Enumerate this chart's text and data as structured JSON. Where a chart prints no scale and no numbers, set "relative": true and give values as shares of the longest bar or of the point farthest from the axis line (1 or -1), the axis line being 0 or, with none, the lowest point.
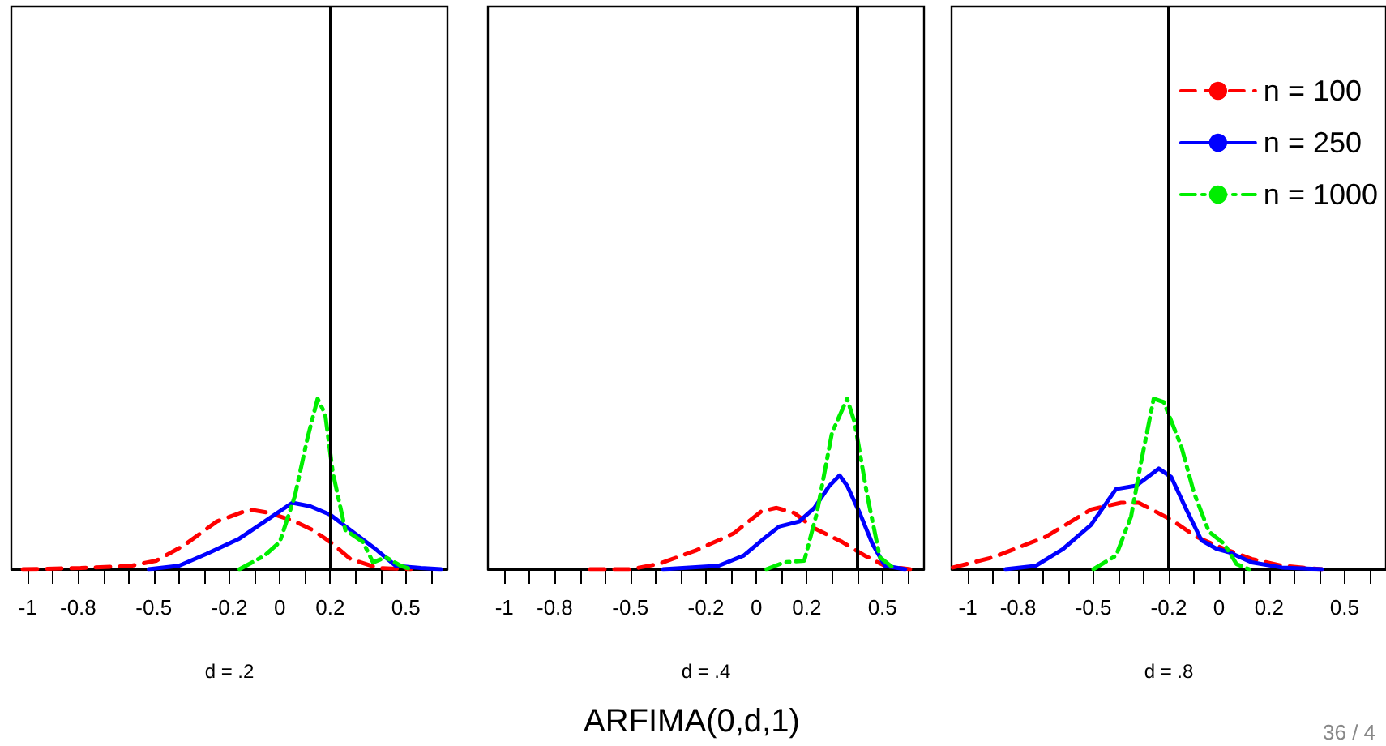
{
  "chart_data": [
    {
      "type": "line",
      "relative": true,
      "xlabel": "d = .2",
      "xlim": [
        -1.065,
        0.665
      ],
      "xticks": [
        -1,
        {
          "value": -0.9,
          "label": null
        },
        -0.8,
        {
          "value": -0.7,
          "label": null
        },
        {
          "value": -0.6,
          "label": null
        },
        -0.5,
        {
          "value": -0.4,
          "label": null
        },
        {
          "value": -0.3,
          "label": null
        },
        -0.2,
        {
          "value": -0.1,
          "label": null
        },
        0,
        {
          "value": 0.1,
          "label": null
        },
        0.2,
        {
          "value": 0.3,
          "label": null
        },
        {
          "value": 0.4,
          "label": null
        },
        0.5,
        {
          "value": 0.6,
          "label": null
        }
      ],
      "ref_lines": [
        {
          "axis": "x",
          "value": 0.2,
          "color": "#000000"
        }
      ],
      "series": [
        {
          "color": "#ff0000",
          "line_style": "dashed",
          "x": [
            -1.02,
            -0.79,
            -0.59,
            -0.49,
            -0.38,
            -0.25,
            -0.12,
            -0.04,
            0.06,
            0.13,
            0.2,
            0.28,
            0.39,
            0.52
          ],
          "values": [
            0,
            0.007,
            0.02,
            0.05,
            0.14,
            0.28,
            0.35,
            0.33,
            0.28,
            0.23,
            0.16,
            0.06,
            0.007,
            0
          ]
        },
        {
          "color": "#0000ff",
          "line_style": "solid",
          "x": [
            -0.52,
            -0.4,
            -0.29,
            -0.16,
            -0.06,
            0.05,
            0.12,
            0.2,
            0.28,
            0.37,
            0.46,
            0.56,
            0.64
          ],
          "values": [
            0,
            0.02,
            0.09,
            0.18,
            0.28,
            0.39,
            0.37,
            0.32,
            0.23,
            0.13,
            0.02,
            0.007,
            0
          ]
        },
        {
          "color": "#00ee00",
          "line_style": "dotted",
          "x": [
            -0.16,
            -0.06,
            0,
            0.06,
            0.11,
            0.15,
            0.18,
            0.21,
            0.26,
            0.33,
            0.37,
            0.42,
            0.48,
            0.52
          ],
          "values": [
            0,
            0.08,
            0.16,
            0.43,
            0.77,
            1,
            0.91,
            0.57,
            0.23,
            0.16,
            0.04,
            0.07,
            0.02,
            0
          ]
        }
      ]
    },
    {
      "type": "line",
      "relative": true,
      "xlabel": "d = .4",
      "xlim": [
        -1.065,
        0.665
      ],
      "xticks": [
        -1,
        {
          "value": -0.9,
          "label": null
        },
        -0.8,
        {
          "value": -0.7,
          "label": null
        },
        {
          "value": -0.6,
          "label": null
        },
        -0.5,
        {
          "value": -0.4,
          "label": null
        },
        {
          "value": -0.3,
          "label": null
        },
        -0.2,
        {
          "value": -0.1,
          "label": null
        },
        0,
        {
          "value": 0.1,
          "label": null
        },
        0.2,
        {
          "value": 0.3,
          "label": null
        },
        {
          "value": 0.4,
          "label": null
        },
        0.5,
        {
          "value": 0.6,
          "label": null
        }
      ],
      "ref_lines": [
        {
          "axis": "x",
          "value": 0.4,
          "color": "#000000"
        }
      ],
      "annotations": [
        "ARFIMA(0,d,1)"
      ],
      "series": [
        {
          "color": "#ff0000",
          "line_style": "dashed",
          "x": [
            -0.66,
            -0.5,
            -0.39,
            -0.24,
            -0.09,
            0.02,
            0.08,
            0.15,
            0.23,
            0.34,
            0.43,
            0.51,
            0.61
          ],
          "values": [
            0,
            0,
            0.03,
            0.11,
            0.21,
            0.34,
            0.36,
            0.33,
            0.24,
            0.16,
            0.08,
            0.02,
            0
          ]
        },
        {
          "color": "#0000ff",
          "line_style": "solid",
          "x": [
            -0.37,
            -0.15,
            -0.05,
            0.03,
            0.09,
            0.17,
            0.23,
            0.29,
            0.33,
            0.36,
            0.41,
            0.46,
            0.51,
            0.59
          ],
          "values": [
            0,
            0.02,
            0.08,
            0.18,
            0.25,
            0.28,
            0.36,
            0.49,
            0.55,
            0.49,
            0.33,
            0.15,
            0.02,
            0
          ]
        },
        {
          "color": "#00ee00",
          "line_style": "dotted",
          "x": [
            0.04,
            0.11,
            0.19,
            0.24,
            0.3,
            0.36,
            0.39,
            0.44,
            0.49,
            0.55
          ],
          "values": [
            0,
            0.04,
            0.05,
            0.33,
            0.8,
            1,
            0.86,
            0.43,
            0.07,
            0
          ]
        }
      ]
    },
    {
      "type": "line",
      "relative": true,
      "xlabel": "d = .8",
      "xlim": [
        -1.065,
        0.665
      ],
      "legend": "top right",
      "xticks": [
        -1,
        {
          "value": -0.9,
          "label": null
        },
        -0.8,
        {
          "value": -0.7,
          "label": null
        },
        {
          "value": -0.6,
          "label": null
        },
        -0.5,
        {
          "value": -0.4,
          "label": null
        },
        {
          "value": -0.3,
          "label": null
        },
        -0.2,
        {
          "value": -0.1,
          "label": null
        },
        0,
        {
          "value": 0.1,
          "label": null
        },
        0.2,
        {
          "value": 0.3,
          "label": null
        },
        {
          "value": 0.4,
          "label": null
        },
        0.5,
        {
          "value": 0.6,
          "label": null
        }
      ],
      "ref_lines": [
        {
          "axis": "x",
          "value": -0.2,
          "color": "#000000"
        }
      ],
      "annotations": [
        "36 / 4"
      ],
      "series": [
        {
          "name": "n = 100",
          "color": "#ff0000",
          "line_style": "dashed",
          "x": [
            -1.06,
            -0.9,
            -0.69,
            -0.51,
            -0.39,
            -0.32,
            -0.19,
            -0.09,
            0.02,
            0.13,
            0.25,
            0.41
          ],
          "values": [
            0.01,
            0.07,
            0.19,
            0.35,
            0.39,
            0.39,
            0.29,
            0.19,
            0.12,
            0.06,
            0.02,
            0
          ]
        },
        {
          "name": "n = 250",
          "color": "#0000ff",
          "line_style": "solid",
          "x": [
            -0.85,
            -0.73,
            -0.62,
            -0.51,
            -0.41,
            -0.33,
            -0.24,
            -0.19,
            -0.13,
            -0.07,
            -0.01,
            0.04,
            0.13,
            0.25,
            0.41
          ],
          "values": [
            0,
            0.02,
            0.12,
            0.26,
            0.47,
            0.49,
            0.59,
            0.54,
            0.35,
            0.17,
            0.12,
            0.1,
            0.04,
            0.01,
            0
          ]
        },
        {
          "name": "n = 1000",
          "color": "#00ee00",
          "line_style": "dotted",
          "x": [
            -0.5,
            -0.41,
            -0.35,
            -0.31,
            -0.26,
            -0.22,
            -0.15,
            -0.1,
            -0.04,
            0.02,
            0.07,
            0.12
          ],
          "values": [
            0,
            0.08,
            0.31,
            0.63,
            1,
            0.98,
            0.72,
            0.45,
            0.22,
            0.15,
            0.03,
            0
          ]
        }
      ]
    }
  ]
}
